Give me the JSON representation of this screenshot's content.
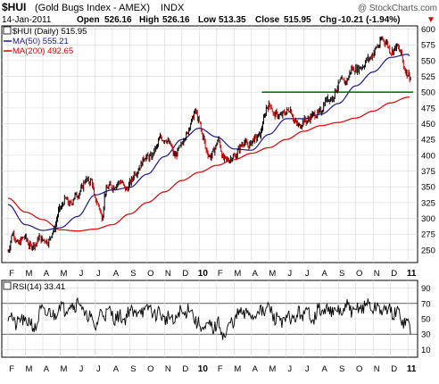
{
  "header": {
    "symbol": "$HUI",
    "name": "(Gold Bugs Index - AMEX)",
    "exchange": "INDX",
    "watermark": "@ StockCharts.com",
    "date": "14-Jan-2011",
    "open_label": "Open",
    "open": "526.16",
    "high_label": "High",
    "high": "526.16",
    "low_label": "Low",
    "low": "513.35",
    "close_label": "Close",
    "close": "515.95",
    "chg_label": "Chg",
    "chg": "-10.21 (-1.94%)",
    "chg_arrow": "▼"
  },
  "legend": {
    "price": "$HUI (Daily) 515.95",
    "ma50": "MA(50) 555.21",
    "ma200": "MA(200) 492.65"
  },
  "rsi_panel": {
    "label": "RSI(14) 33.41"
  },
  "colors": {
    "price": "#000000",
    "price_down": "#d00000",
    "ma50": "#1a1a8c",
    "ma200": "#e00000",
    "support": "#008000",
    "grid": "#d6d6d6",
    "rsi": "#000000"
  },
  "chart_data": [
    {
      "type": "line",
      "title": "$HUI (Daily)",
      "x_months": [
        "F",
        "M",
        "A",
        "M",
        "J",
        "J",
        "A",
        "S",
        "O",
        "N",
        "D",
        "10",
        "F",
        "M",
        "A",
        "M",
        "J",
        "J",
        "A",
        "S",
        "O",
        "N",
        "D",
        "11"
      ],
      "ylim": [
        230,
        605
      ],
      "yticks": [
        250,
        275,
        300,
        325,
        350,
        375,
        400,
        425,
        450,
        475,
        500,
        525,
        550,
        575,
        600
      ],
      "grid": true,
      "series": [
        {
          "name": "$HUI (Daily)",
          "anchors": [
            [
              0,
              248
            ],
            [
              0.3,
              275
            ],
            [
              0.6,
              262
            ],
            [
              1.0,
              268
            ],
            [
              1.3,
              258
            ],
            [
              1.6,
              256
            ],
            [
              1.8,
              272
            ],
            [
              2.0,
              268
            ],
            [
              2.3,
              260
            ],
            [
              2.6,
              283
            ],
            [
              3.0,
              313
            ],
            [
              3.3,
              333
            ],
            [
              3.6,
              320
            ],
            [
              3.9,
              338
            ],
            [
              4.2,
              345
            ],
            [
              4.5,
              360
            ],
            [
              4.8,
              362
            ],
            [
              5.0,
              327
            ],
            [
              5.2,
              320
            ],
            [
              5.4,
              305
            ],
            [
              5.6,
              342
            ],
            [
              5.9,
              350
            ],
            [
              6.2,
              355
            ],
            [
              6.5,
              355
            ],
            [
              6.8,
              349
            ],
            [
              7.1,
              357
            ],
            [
              7.3,
              372
            ],
            [
              7.6,
              385
            ],
            [
              7.9,
              395
            ],
            [
              8.2,
              400
            ],
            [
              8.5,
              408
            ],
            [
              8.8,
              430
            ],
            [
              9.0,
              427
            ],
            [
              9.3,
              415
            ],
            [
              9.6,
              402
            ],
            [
              9.9,
              410
            ],
            [
              10.2,
              432
            ],
            [
              10.5,
              450
            ],
            [
              10.8,
              468
            ],
            [
              11.0,
              455
            ],
            [
              11.2,
              430
            ],
            [
              11.4,
              405
            ],
            [
              11.6,
              400
            ],
            [
              11.9,
              410
            ],
            [
              12.1,
              422
            ],
            [
              12.4,
              397
            ],
            [
              12.7,
              390
            ],
            [
              13.0,
              400
            ],
            [
              13.3,
              410
            ],
            [
              13.6,
              420
            ],
            [
              13.9,
              418
            ],
            [
              14.2,
              424
            ],
            [
              14.5,
              436
            ],
            [
              14.7,
              455
            ],
            [
              14.9,
              475
            ],
            [
              15.1,
              482
            ],
            [
              15.3,
              465
            ],
            [
              15.6,
              460
            ],
            [
              15.9,
              470
            ],
            [
              16.2,
              470
            ],
            [
              16.5,
              455
            ],
            [
              16.8,
              446
            ],
            [
              17.1,
              455
            ],
            [
              17.4,
              462
            ],
            [
              17.7,
              462
            ],
            [
              18.0,
              473
            ],
            [
              18.3,
              485
            ],
            [
              18.6,
              492
            ],
            [
              18.9,
              505
            ],
            [
              19.2,
              518
            ],
            [
              19.5,
              520
            ],
            [
              19.8,
              535
            ],
            [
              20.1,
              540
            ],
            [
              20.4,
              538
            ],
            [
              20.7,
              555
            ],
            [
              21.0,
              560
            ],
            [
              21.3,
              573
            ],
            [
              21.5,
              588
            ],
            [
              21.7,
              578
            ],
            [
              22.0,
              565
            ],
            [
              22.3,
              573
            ],
            [
              22.6,
              560
            ],
            [
              22.8,
              540
            ],
            [
              23.0,
              530
            ],
            [
              23.2,
              516
            ]
          ]
        },
        {
          "name": "MA(50)",
          "anchors": [
            [
              0,
              322
            ],
            [
              1,
              290
            ],
            [
              2,
              281
            ],
            [
              3,
              285
            ],
            [
              4,
              303
            ],
            [
              5,
              337
            ],
            [
              6,
              345
            ],
            [
              7,
              349
            ],
            [
              8,
              370
            ],
            [
              9,
              398
            ],
            [
              10,
              425
            ],
            [
              11,
              443
            ],
            [
              12,
              429
            ],
            [
              13,
              410
            ],
            [
              14,
              408
            ],
            [
              15,
              433
            ],
            [
              16,
              458
            ],
            [
              17,
              458
            ],
            [
              18,
              465
            ],
            [
              19,
              482
            ],
            [
              20,
              510
            ],
            [
              21,
              532
            ],
            [
              22,
              555
            ],
            [
              23,
              560
            ],
            [
              23.2,
              555
            ]
          ]
        },
        {
          "name": "MA(200)",
          "anchors": [
            [
              0,
              332
            ],
            [
              1,
              310
            ],
            [
              2,
              298
            ],
            [
              3,
              282
            ],
            [
              4,
              280
            ],
            [
              5,
              283
            ],
            [
              6,
              290
            ],
            [
              7,
              307
            ],
            [
              8,
              325
            ],
            [
              9,
              342
            ],
            [
              10,
              360
            ],
            [
              11,
              373
            ],
            [
              12,
              384
            ],
            [
              13,
              393
            ],
            [
              14,
              403
            ],
            [
              15,
              412
            ],
            [
              16,
              425
            ],
            [
              17,
              438
            ],
            [
              18,
              447
            ],
            [
              19,
              452
            ],
            [
              20,
              459
            ],
            [
              21,
              470
            ],
            [
              22,
              483
            ],
            [
              23,
              492
            ],
            [
              23.2,
              493
            ]
          ]
        }
      ],
      "support_line": {
        "value": 500,
        "x_from": 14.6,
        "x_to": 23.3
      }
    },
    {
      "type": "line",
      "title": "RSI(14)",
      "ylim": [
        0,
        100
      ],
      "yticks": [
        10,
        30,
        50,
        70,
        90
      ],
      "reference_lines": [
        30,
        70
      ],
      "x_months": [
        "F",
        "M",
        "A",
        "M",
        "J",
        "J",
        "A",
        "S",
        "O",
        "N",
        "D",
        "10",
        "F",
        "M",
        "A",
        "M",
        "J",
        "J",
        "A",
        "S",
        "O",
        "N",
        "D",
        "11"
      ],
      "series": [
        {
          "name": "RSI(14)",
          "anchors": [
            [
              0,
              55
            ],
            [
              0.5,
              45
            ],
            [
              1,
              48
            ],
            [
              1.5,
              40
            ],
            [
              2,
              60
            ],
            [
              2.5,
              55
            ],
            [
              3,
              65
            ],
            [
              3.5,
              66
            ],
            [
              4,
              72
            ],
            [
              4.5,
              55
            ],
            [
              5,
              42
            ],
            [
              5.5,
              60
            ],
            [
              6,
              55
            ],
            [
              6.5,
              50
            ],
            [
              7,
              58
            ],
            [
              7.5,
              60
            ],
            [
              8,
              62
            ],
            [
              8.5,
              58
            ],
            [
              9,
              52
            ],
            [
              9.5,
              48
            ],
            [
              10,
              58
            ],
            [
              10.5,
              62
            ],
            [
              11,
              40
            ],
            [
              11.5,
              38
            ],
            [
              12,
              42
            ],
            [
              12.5,
              30
            ],
            [
              13,
              50
            ],
            [
              13.5,
              58
            ],
            [
              14,
              55
            ],
            [
              14.5,
              60
            ],
            [
              15,
              62
            ],
            [
              15.5,
              50
            ],
            [
              16,
              48
            ],
            [
              16.5,
              52
            ],
            [
              17,
              58
            ],
            [
              17.5,
              54
            ],
            [
              18,
              60
            ],
            [
              18.5,
              62
            ],
            [
              19,
              58
            ],
            [
              19.5,
              64
            ],
            [
              20,
              60
            ],
            [
              20.5,
              68
            ],
            [
              21,
              65
            ],
            [
              21.5,
              62
            ],
            [
              22,
              60
            ],
            [
              22.5,
              55
            ],
            [
              23,
              42
            ],
            [
              23.2,
              33
            ]
          ]
        }
      ]
    }
  ]
}
